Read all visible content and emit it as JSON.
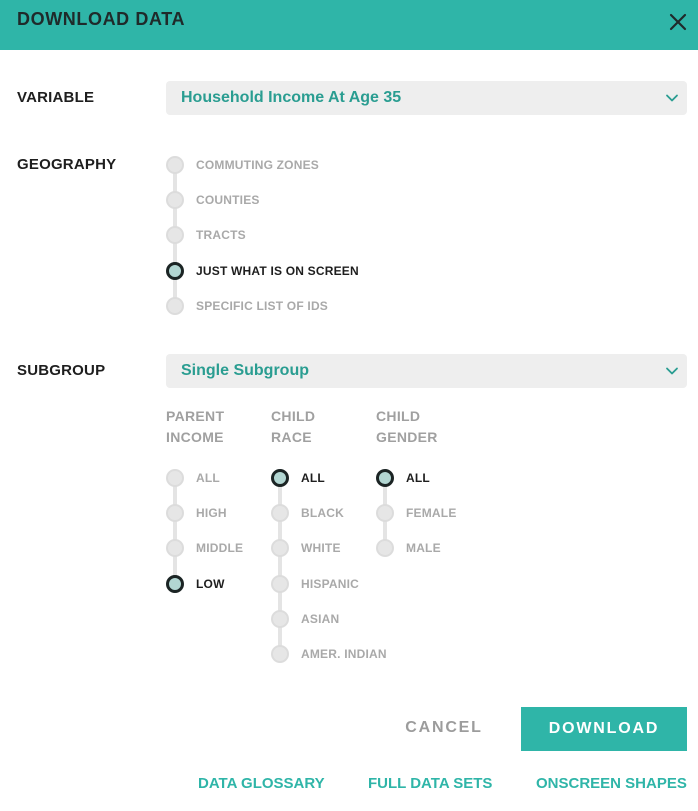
{
  "dialog": {
    "title": "DOWNLOAD DATA",
    "close_icon": "close-icon (×)"
  },
  "variable": {
    "label": "VARIABLE",
    "selected": "Household Income At Age 35"
  },
  "geography": {
    "label": "GEOGRAPHY",
    "options": [
      {
        "label": "COMMUTING ZONES",
        "selected": false
      },
      {
        "label": "COUNTIES",
        "selected": false
      },
      {
        "label": "TRACTS",
        "selected": false
      },
      {
        "label": "JUST WHAT IS ON SCREEN",
        "selected": true
      },
      {
        "label": "SPECIFIC LIST OF IDS",
        "selected": false
      }
    ]
  },
  "subgroup": {
    "label": "SUBGROUP",
    "selected": "Single Subgroup"
  },
  "filters": {
    "parent_income": {
      "heading_line1": "PARENT",
      "heading_line2": "INCOME",
      "options": [
        {
          "label": "ALL",
          "selected": false
        },
        {
          "label": "HIGH",
          "selected": false
        },
        {
          "label": "MIDDLE",
          "selected": false
        },
        {
          "label": "LOW",
          "selected": true
        }
      ]
    },
    "child_race": {
      "heading_line1": "CHILD",
      "heading_line2": "RACE",
      "options": [
        {
          "label": "ALL",
          "selected": true
        },
        {
          "label": "BLACK",
          "selected": false
        },
        {
          "label": "WHITE",
          "selected": false
        },
        {
          "label": "HISPANIC",
          "selected": false
        },
        {
          "label": "ASIAN",
          "selected": false
        },
        {
          "label": "AMER. INDIAN",
          "selected": false
        }
      ]
    },
    "child_gender": {
      "heading_line1": "CHILD",
      "heading_line2": "GENDER",
      "options": [
        {
          "label": "ALL",
          "selected": true
        },
        {
          "label": "FEMALE",
          "selected": false
        },
        {
          "label": "MALE",
          "selected": false
        }
      ]
    }
  },
  "actions": {
    "cancel": "CANCEL",
    "download": "DOWNLOAD"
  },
  "links": {
    "glossary": "DATA GLOSSARY",
    "full_data": "FULL DATA SETS",
    "shapes": "ONSCREEN SHAPES"
  },
  "colors": {
    "accent": "#2fb5a8",
    "select_text": "#2a9d91",
    "muted": "#a9a9a9"
  }
}
